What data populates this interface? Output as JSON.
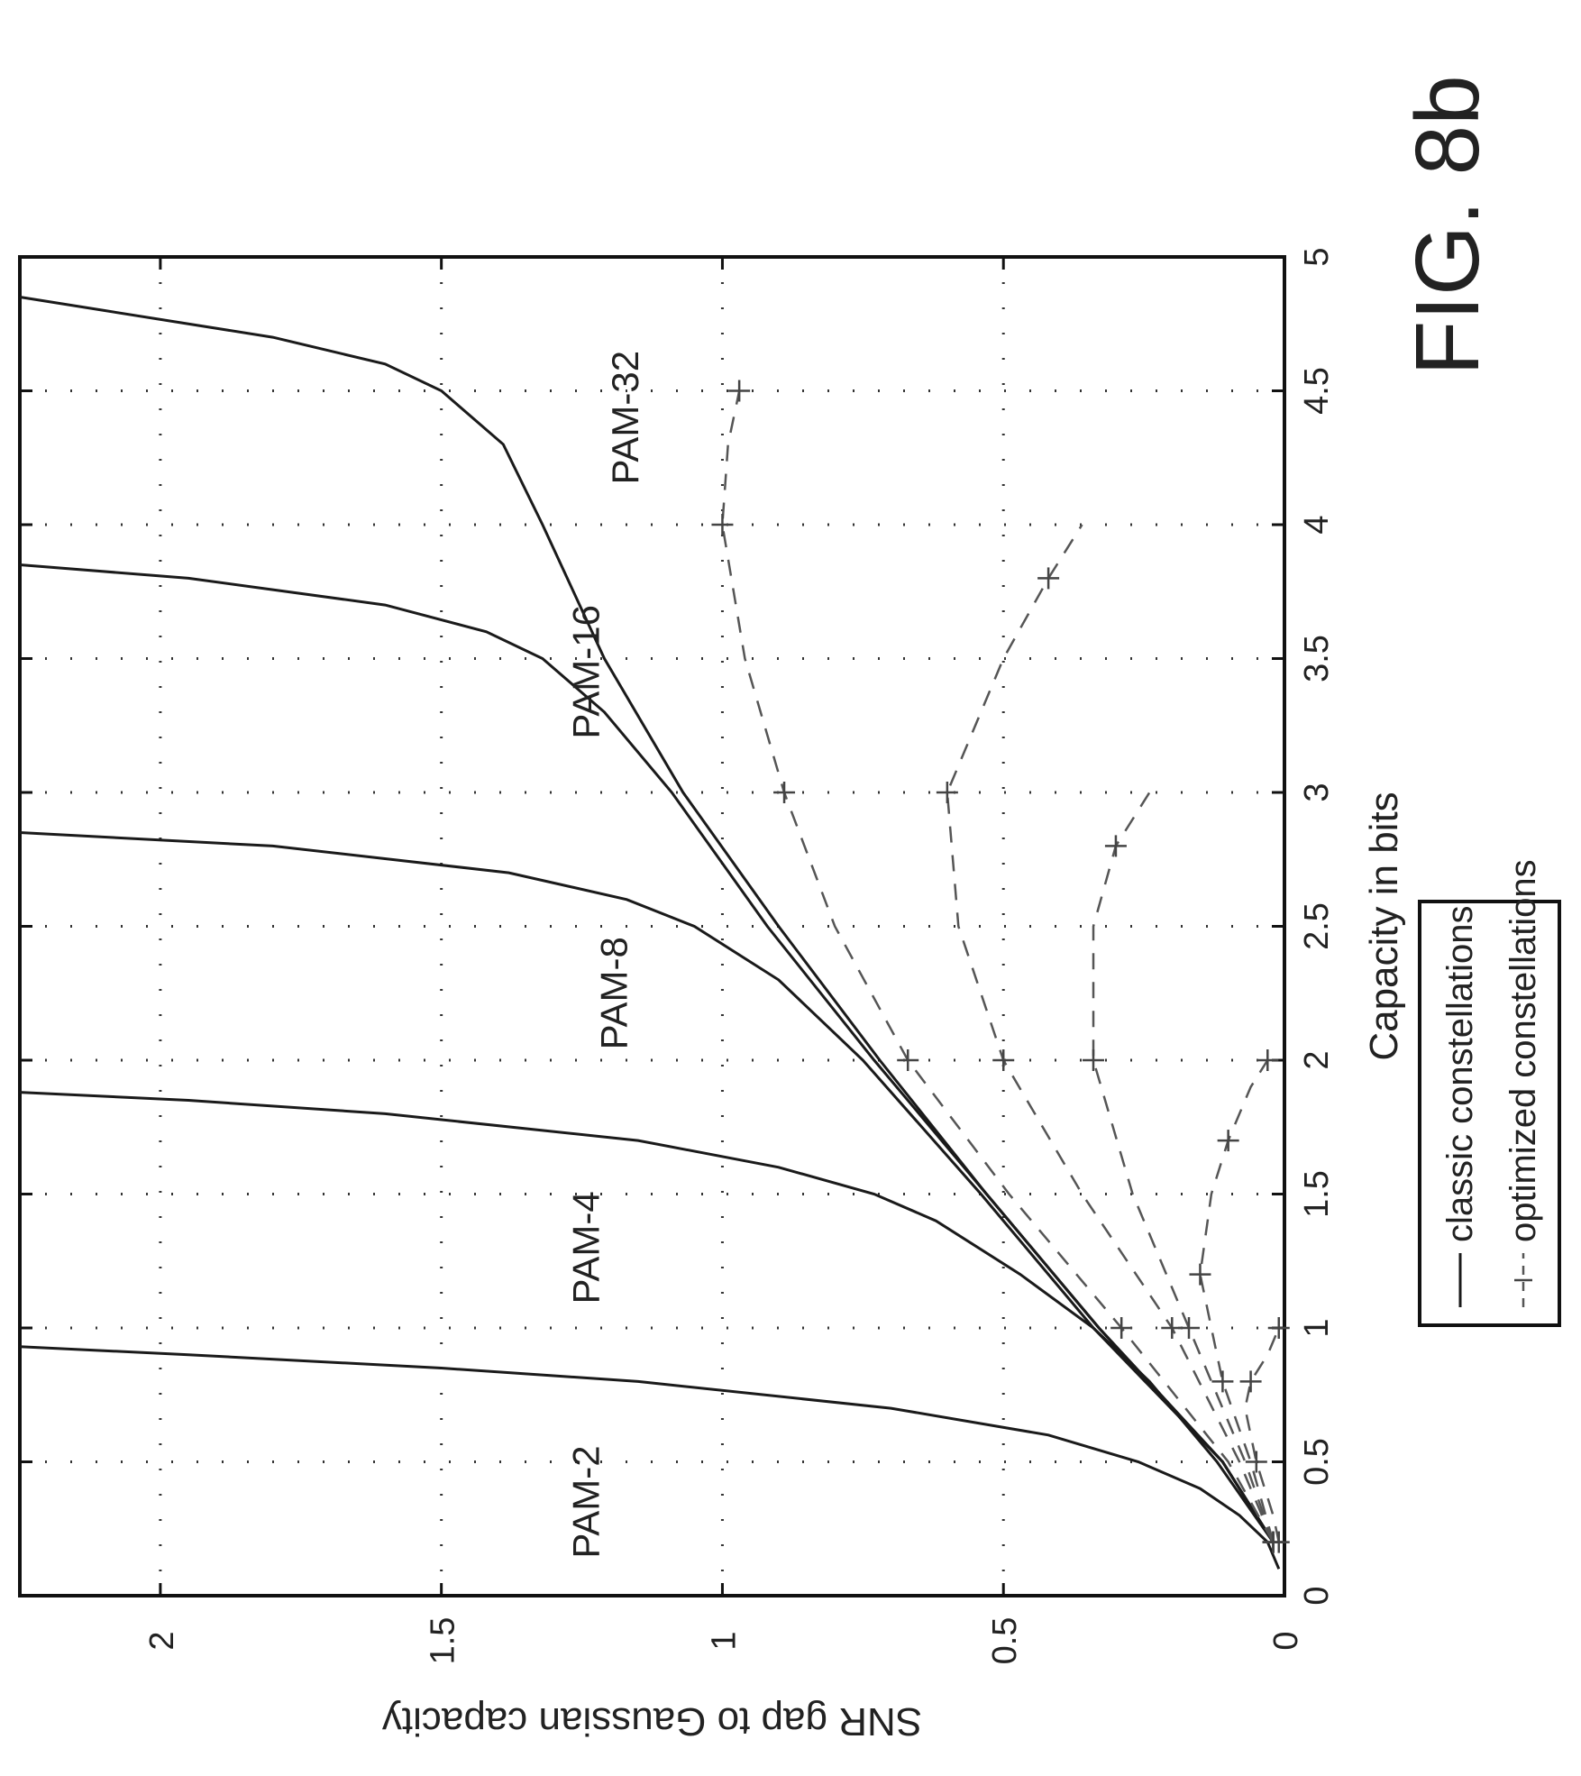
{
  "figure_label": "FIG. 8b",
  "chart_data": {
    "type": "line",
    "xlabel": "Capacity in bits",
    "ylabel": "SNR gap to Gaussian capacity",
    "xlim": [
      0,
      5
    ],
    "ylim": [
      0,
      2.25
    ],
    "x_ticks": [
      0,
      0.5,
      1,
      1.5,
      2,
      2.5,
      3,
      3.5,
      4,
      4.5,
      5
    ],
    "y_ticks": [
      0,
      0.5,
      1,
      1.5,
      2
    ],
    "x_tick_labels": [
      "0",
      "0.5",
      "1",
      "1.5",
      "2",
      "2.5",
      "3",
      "3.5",
      "4",
      "4.5",
      "5"
    ],
    "y_tick_labels": [
      "0",
      "0.5",
      "1",
      "1.5",
      "2"
    ],
    "grid": true,
    "orientation": "rotated 90° counter-clockwise on the page",
    "legend": {
      "position": "below plot",
      "entries": [
        {
          "label": "classic constellations",
          "style": "solid"
        },
        {
          "label": "optimized constellations",
          "style": "dashed with + markers"
        }
      ]
    },
    "annotations": [
      {
        "text": "PAM-2",
        "x": 0.35,
        "y": 1.22
      },
      {
        "text": "PAM-4",
        "x": 1.3,
        "y": 1.22
      },
      {
        "text": "PAM-8",
        "x": 2.25,
        "y": 1.17
      },
      {
        "text": "PAM-16",
        "x": 3.45,
        "y": 1.22
      },
      {
        "text": "PAM-32",
        "x": 4.4,
        "y": 1.15
      }
    ],
    "series": [
      {
        "name": "PAM-2",
        "style": "solid",
        "x": [
          0.1,
          0.2,
          0.3,
          0.4,
          0.5,
          0.6,
          0.7,
          0.8,
          0.85,
          0.9,
          0.93
        ],
        "y": [
          0.01,
          0.03,
          0.08,
          0.15,
          0.26,
          0.42,
          0.7,
          1.15,
          1.5,
          1.95,
          2.25
        ]
      },
      {
        "name": "PAM-4",
        "style": "solid",
        "x": [
          0.2,
          0.5,
          0.8,
          1.0,
          1.2,
          1.4,
          1.5,
          1.6,
          1.7,
          1.8,
          1.85,
          1.88
        ],
        "y": [
          0.02,
          0.12,
          0.24,
          0.34,
          0.47,
          0.62,
          0.73,
          0.9,
          1.15,
          1.6,
          1.95,
          2.25
        ]
      },
      {
        "name": "PAM-8",
        "style": "solid",
        "x": [
          0.2,
          0.5,
          1.0,
          1.5,
          2.0,
          2.3,
          2.5,
          2.6,
          2.7,
          2.8,
          2.85
        ],
        "y": [
          0.02,
          0.11,
          0.34,
          0.54,
          0.75,
          0.9,
          1.05,
          1.17,
          1.38,
          1.8,
          2.25
        ]
      },
      {
        "name": "PAM-16",
        "style": "solid",
        "x": [
          0.2,
          0.5,
          1.0,
          1.5,
          2.0,
          2.5,
          3.0,
          3.3,
          3.5,
          3.6,
          3.7,
          3.8,
          3.85
        ],
        "y": [
          0.02,
          0.11,
          0.33,
          0.53,
          0.73,
          0.92,
          1.09,
          1.21,
          1.32,
          1.42,
          1.6,
          1.95,
          2.25
        ]
      },
      {
        "name": "PAM-32",
        "style": "solid",
        "x": [
          0.2,
          0.5,
          1.0,
          1.5,
          2.0,
          2.5,
          3.0,
          3.5,
          4.0,
          4.3,
          4.5,
          4.6,
          4.7,
          4.8,
          4.85
        ],
        "y": [
          0.02,
          0.11,
          0.33,
          0.53,
          0.72,
          0.9,
          1.07,
          1.21,
          1.32,
          1.39,
          1.5,
          1.6,
          1.8,
          2.1,
          2.25
        ]
      },
      {
        "name": "PAM-2 optimized",
        "style": "dashed",
        "x": [
          0.2,
          0.3,
          0.5,
          0.7,
          0.8,
          0.9,
          1.0
        ],
        "y": [
          0.01,
          0.02,
          0.05,
          0.07,
          0.06,
          0.03,
          0.01
        ]
      },
      {
        "name": "PAM-4 optimized",
        "style": "dashed",
        "x": [
          0.2,
          0.5,
          0.8,
          1.0,
          1.2,
          1.5,
          1.7,
          1.9,
          2.0
        ],
        "y": [
          0.02,
          0.06,
          0.11,
          0.13,
          0.15,
          0.13,
          0.1,
          0.06,
          0.03
        ]
      },
      {
        "name": "PAM-8 optimized",
        "style": "dashed",
        "x": [
          0.2,
          0.5,
          1.0,
          1.5,
          2.0,
          2.5,
          2.8,
          3.0
        ],
        "y": [
          0.02,
          0.07,
          0.17,
          0.27,
          0.34,
          0.34,
          0.3,
          0.24
        ]
      },
      {
        "name": "PAM-16 optimized",
        "style": "dashed",
        "x": [
          0.2,
          0.5,
          1.0,
          1.5,
          2.0,
          2.5,
          3.0,
          3.5,
          3.8,
          4.0
        ],
        "y": [
          0.02,
          0.08,
          0.2,
          0.36,
          0.5,
          0.58,
          0.6,
          0.5,
          0.42,
          0.36
        ]
      },
      {
        "name": "PAM-32 optimized",
        "style": "dashed",
        "x": [
          0.2,
          0.5,
          1.0,
          1.5,
          2.0,
          2.5,
          3.0,
          3.5,
          4.0,
          4.3,
          4.5
        ],
        "y": [
          0.02,
          0.1,
          0.29,
          0.49,
          0.67,
          0.8,
          0.89,
          0.96,
          1.0,
          0.99,
          0.97
        ]
      }
    ]
  }
}
